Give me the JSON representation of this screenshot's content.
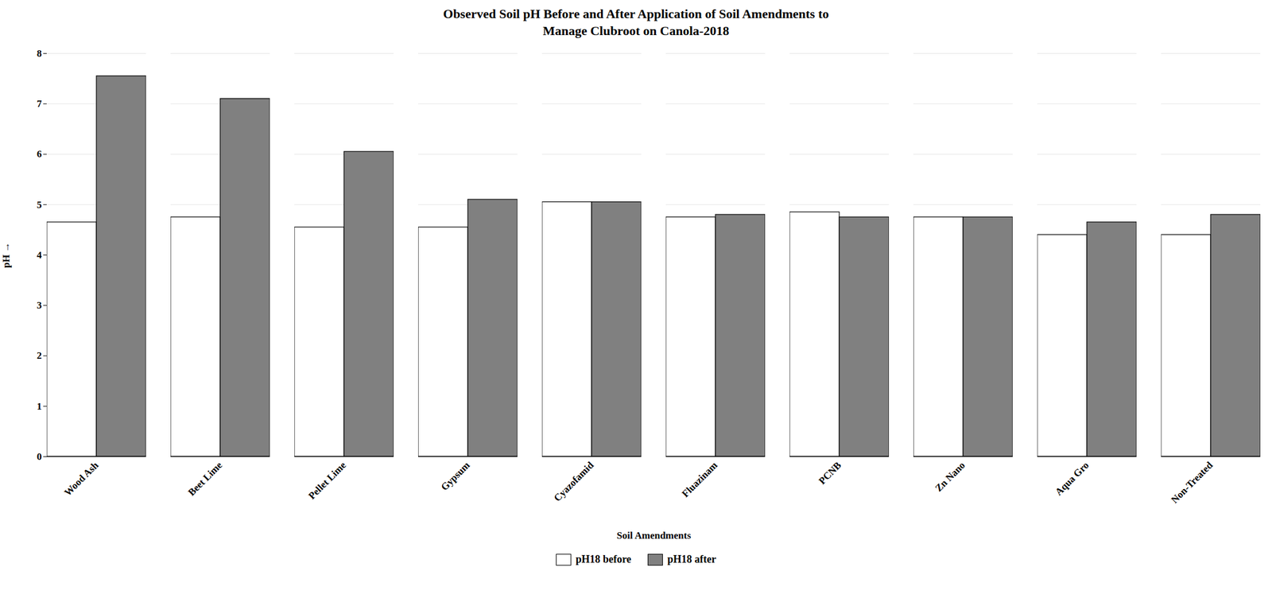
{
  "chart_data": {
    "type": "bar",
    "title": "Observed Soil pH Before and After Application of Soil Amendments to\nManage Clubroot on Canola-2018",
    "xlabel": "Soil Amendments",
    "ylabel": "pH",
    "categories": [
      "Wood Ash",
      "Beet Lime",
      "Pellet Lime",
      "Gypsum",
      "Cyazofamid",
      "Fluazinam",
      "PCNB",
      "Zn Nano",
      "Aqua Gro",
      "Non-Treated"
    ],
    "series": [
      {
        "name": "pH18 before",
        "color": "#ffffff",
        "values": [
          4.65,
          4.75,
          4.55,
          4.55,
          5.05,
          4.75,
          4.85,
          4.75,
          4.4,
          4.4
        ]
      },
      {
        "name": "pH18 after",
        "color": "#808080",
        "values": [
          7.55,
          7.1,
          6.05,
          5.1,
          5.05,
          4.8,
          4.75,
          4.75,
          4.65,
          4.8
        ]
      }
    ],
    "ylim": [
      0,
      8
    ],
    "yticks": [
      0,
      1,
      2,
      3,
      4,
      5,
      6,
      7,
      8
    ],
    "grid": true,
    "legend": "bottom"
  }
}
